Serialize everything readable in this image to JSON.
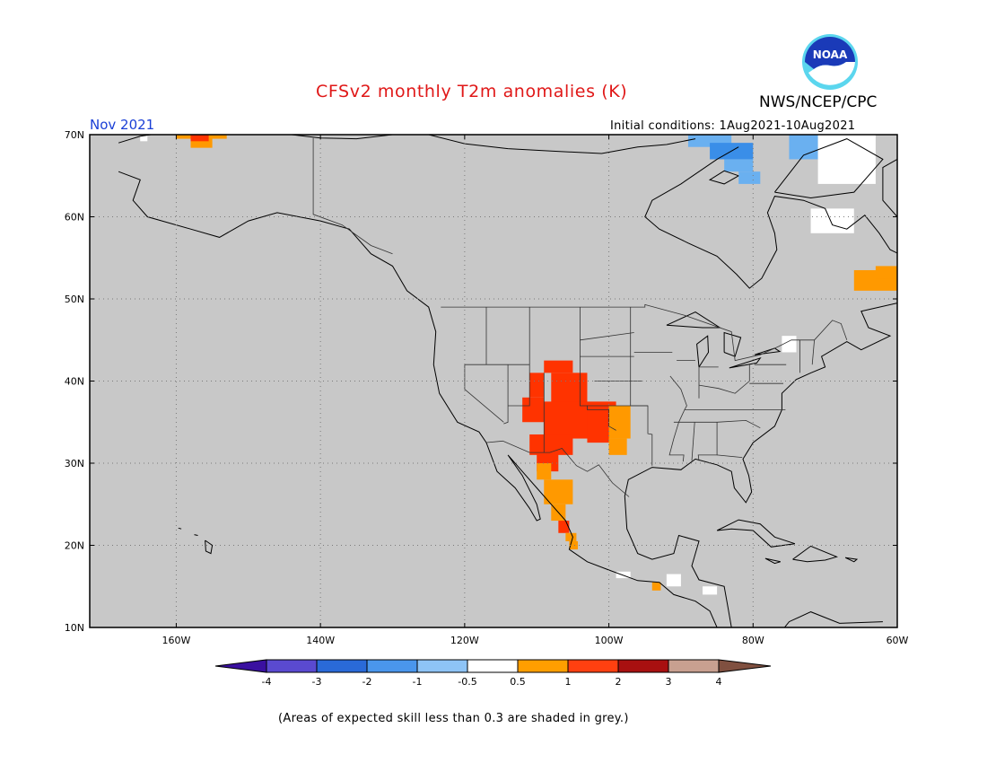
{
  "title": "CFSv2 monthly T2m anomalies (K)",
  "organization": "NWS/NCEP/CPC",
  "logo_text": "NOAA",
  "month": "Nov 2021",
  "initial_conditions": "Initial conditions: 1Aug2021-10Aug2021",
  "footnote": "(Areas of expected skill less than 0.3 are shaded in grey.)",
  "map": {
    "lon_range": [
      -172,
      -60
    ],
    "lat_range": [
      10,
      70
    ],
    "lon_ticks": [
      {
        "value": -160,
        "label": "160W"
      },
      {
        "value": -140,
        "label": "140W"
      },
      {
        "value": -120,
        "label": "120W"
      },
      {
        "value": -100,
        "label": "100W"
      },
      {
        "value": -80,
        "label": "80W"
      },
      {
        "value": -60,
        "label": "60W"
      }
    ],
    "lat_ticks": [
      {
        "value": 10,
        "label": "10N"
      },
      {
        "value": 20,
        "label": "20N"
      },
      {
        "value": 30,
        "label": "30N"
      },
      {
        "value": 40,
        "label": "40N"
      },
      {
        "value": 50,
        "label": "50N"
      },
      {
        "value": 60,
        "label": "60N"
      },
      {
        "value": 70,
        "label": "70N"
      }
    ],
    "colors": {
      "low_skill_grey": "#c8c8c8",
      "coast": "#000000",
      "grid": "#7a7a7a",
      "warm_1": "#ff9900",
      "warm_2": "#ff3300",
      "cool_1": "#6ab0f0",
      "cool_2": "#3a8ee8",
      "neutral": "#ffffff"
    },
    "anomaly_cells": [
      {
        "lon": -160,
        "lat": 69.5,
        "w": 7,
        "h": 1.2,
        "c": "warm_1"
      },
      {
        "lon": -158,
        "lat": 68.4,
        "w": 3,
        "h": 1.2,
        "c": "warm_1"
      },
      {
        "lon": -158,
        "lat": 69.2,
        "w": 2.5,
        "h": 0.8,
        "c": "warm_2"
      },
      {
        "lon": -165,
        "lat": 69.2,
        "w": 1,
        "h": 0.7,
        "c": "neutral"
      },
      {
        "lon": -109,
        "lat": 41,
        "w": 4,
        "h": 1.5,
        "c": "warm_2"
      },
      {
        "lon": -111,
        "lat": 38,
        "w": 2,
        "h": 3,
        "c": "warm_2"
      },
      {
        "lon": -108,
        "lat": 37,
        "w": 5,
        "h": 4,
        "c": "warm_2"
      },
      {
        "lon": -112,
        "lat": 35,
        "w": 3,
        "h": 3,
        "c": "warm_2"
      },
      {
        "lon": -109,
        "lat": 33,
        "w": 10,
        "h": 4.5,
        "c": "warm_2"
      },
      {
        "lon": -111,
        "lat": 31,
        "w": 6,
        "h": 2.5,
        "c": "warm_2"
      },
      {
        "lon": -110,
        "lat": 29,
        "w": 3,
        "h": 2.5,
        "c": "warm_2"
      },
      {
        "lon": -103,
        "lat": 32.5,
        "w": 3,
        "h": 4,
        "c": "warm_2"
      },
      {
        "lon": -100,
        "lat": 33,
        "w": 3,
        "h": 4,
        "c": "warm_1"
      },
      {
        "lon": -100,
        "lat": 31,
        "w": 2.5,
        "h": 2,
        "c": "warm_1"
      },
      {
        "lon": -110,
        "lat": 28,
        "w": 2,
        "h": 2,
        "c": "warm_1"
      },
      {
        "lon": -109,
        "lat": 25,
        "w": 4,
        "h": 3,
        "c": "warm_1"
      },
      {
        "lon": -108,
        "lat": 23,
        "w": 2,
        "h": 2,
        "c": "warm_1"
      },
      {
        "lon": -107,
        "lat": 21.5,
        "w": 1.5,
        "h": 1.5,
        "c": "warm_2"
      },
      {
        "lon": -106,
        "lat": 20.5,
        "w": 1.5,
        "h": 1,
        "c": "warm_1"
      },
      {
        "lon": -105.5,
        "lat": 19.5,
        "w": 1.2,
        "h": 1,
        "c": "warm_1"
      },
      {
        "lon": -89,
        "lat": 68.5,
        "w": 6,
        "h": 1.5,
        "c": "cool_1"
      },
      {
        "lon": -86,
        "lat": 67,
        "w": 6,
        "h": 2,
        "c": "cool_2"
      },
      {
        "lon": -84,
        "lat": 65.5,
        "w": 4,
        "h": 1.5,
        "c": "cool_1"
      },
      {
        "lon": -82,
        "lat": 64,
        "w": 3,
        "h": 1.5,
        "c": "cool_1"
      },
      {
        "lon": -75,
        "lat": 67,
        "w": 4,
        "h": 3,
        "c": "cool_1"
      },
      {
        "lon": -71,
        "lat": 64,
        "w": 8,
        "h": 6,
        "c": "neutral"
      },
      {
        "lon": -72,
        "lat": 58,
        "w": 6,
        "h": 3,
        "c": "neutral"
      },
      {
        "lon": -66,
        "lat": 51,
        "w": 6,
        "h": 2.5,
        "c": "warm_1"
      },
      {
        "lon": -63,
        "lat": 52.5,
        "w": 3,
        "h": 1.5,
        "c": "warm_1"
      },
      {
        "lon": -76,
        "lat": 43.5,
        "w": 2,
        "h": 2,
        "c": "neutral"
      },
      {
        "lon": -99,
        "lat": 16,
        "w": 2,
        "h": 0.8,
        "c": "neutral"
      },
      {
        "lon": -94,
        "lat": 14.5,
        "w": 1.2,
        "h": 1,
        "c": "warm_1"
      },
      {
        "lon": -92,
        "lat": 15,
        "w": 2,
        "h": 1.5,
        "c": "neutral"
      },
      {
        "lon": -87,
        "lat": 14,
        "w": 2,
        "h": 1,
        "c": "neutral"
      }
    ]
  },
  "colorbar": {
    "colors": [
      "#3a10a0",
      "#5a4ad0",
      "#2a6ad8",
      "#4a96ec",
      "#8ec4f6",
      "#ffffff",
      "#ff9e00",
      "#ff4010",
      "#a81010",
      "#c8a090",
      "#805040"
    ],
    "labels": [
      "-4",
      "-3",
      "-2",
      "-1",
      "-0.5",
      "0.5",
      "1",
      "2",
      "3",
      "4"
    ]
  }
}
